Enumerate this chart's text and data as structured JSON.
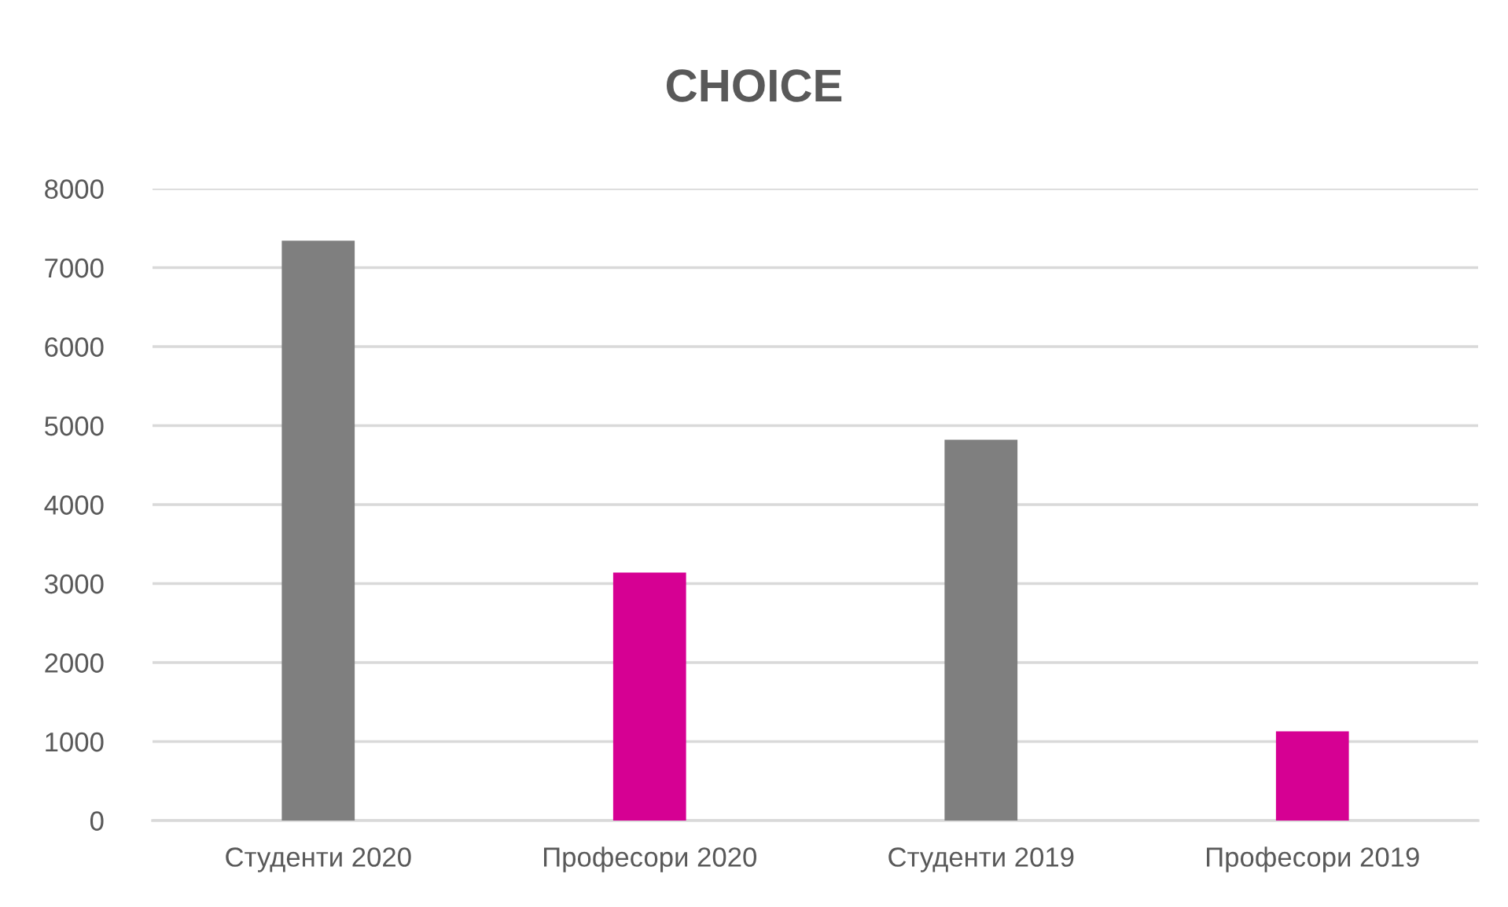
{
  "chart_data": {
    "type": "bar",
    "title": "CHOICE",
    "categories": [
      "Студенти 2020",
      "Професори 2020",
      "Студенти 2019",
      "Професори 2019"
    ],
    "values": [
      7340,
      3140,
      4820,
      1130
    ],
    "colors": [
      "#7f7f7f",
      "#d60093",
      "#7f7f7f",
      "#d60093"
    ],
    "ylim": [
      0,
      8000
    ],
    "yticks": [
      0,
      1000,
      2000,
      3000,
      4000,
      5000,
      6000,
      7000,
      8000
    ],
    "grid": "y"
  }
}
